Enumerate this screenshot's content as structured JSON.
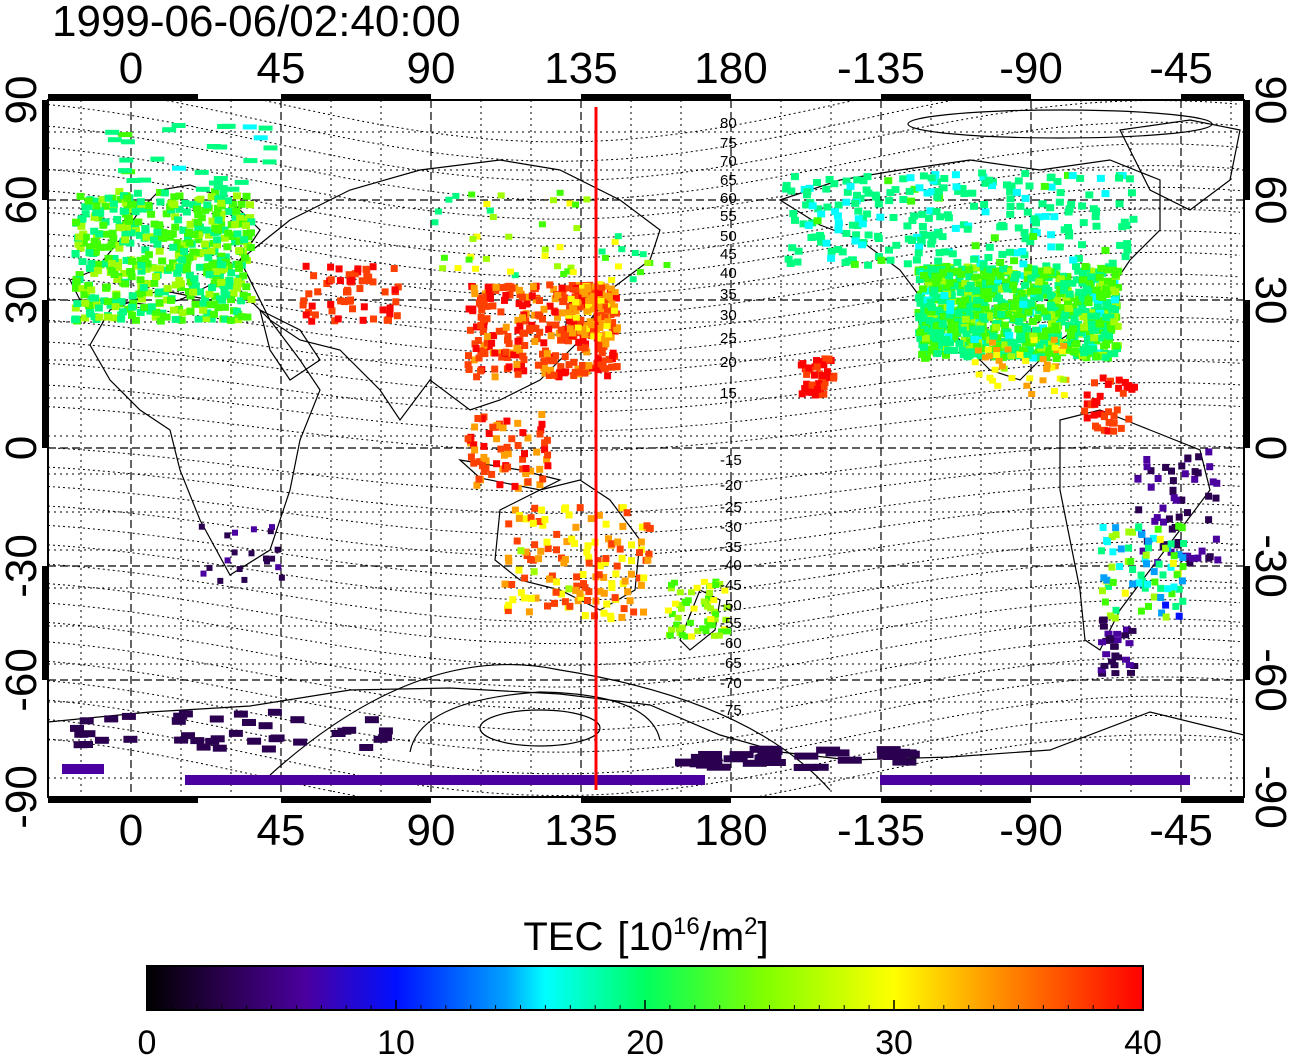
{
  "title": "1999-06-06/02:40:00",
  "map": {
    "lon_ticks": [
      "0",
      "45",
      "90",
      "135",
      "180",
      "-135",
      "-90",
      "-45"
    ],
    "lat_ticks": [
      "90",
      "60",
      "30",
      "0",
      "-30",
      "-60",
      "-90"
    ],
    "contour_labels_north": [
      "80",
      "75",
      "70",
      "65",
      "60",
      "55",
      "50",
      "45",
      "40",
      "35",
      "30",
      "25",
      "20",
      "15"
    ],
    "contour_labels_south": [
      "-15",
      "-20",
      "-25",
      "-30",
      "-35",
      "-40",
      "-45",
      "-50",
      "-55",
      "-60",
      "-65",
      "-70",
      "-75"
    ],
    "marker_line_color": "#ff0000",
    "marker_lon_label": "135"
  },
  "colorbar": {
    "label": "TEC",
    "unit_base": "10",
    "unit_exp": "16",
    "unit_mid": "/m",
    "unit_exp2": "2",
    "ticks": [
      "0",
      "10",
      "20",
      "30",
      "40"
    ]
  }
}
